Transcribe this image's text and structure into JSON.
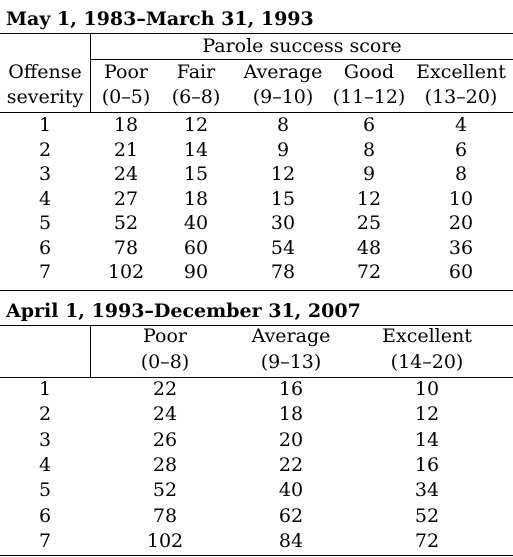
{
  "table1": {
    "title": "May 1, 1983–March 31, 1993",
    "group_label": "Parole success score",
    "stub_label": [
      "Offense",
      "severity"
    ],
    "columns": [
      {
        "label": "Poor",
        "range": "(0–5)"
      },
      {
        "label": "Fair",
        "range": "(6–8)"
      },
      {
        "label": "Average",
        "range": "(9–10)"
      },
      {
        "label": "Good",
        "range": "(11–12)"
      },
      {
        "label": "Excellent",
        "range": "(13–20)"
      }
    ],
    "rows": [
      {
        "severity": "1",
        "values": [
          "18",
          "12",
          "8",
          "6",
          "4"
        ]
      },
      {
        "severity": "2",
        "values": [
          "21",
          "14",
          "9",
          "8",
          "6"
        ]
      },
      {
        "severity": "3",
        "values": [
          "24",
          "15",
          "12",
          "9",
          "8"
        ]
      },
      {
        "severity": "4",
        "values": [
          "27",
          "18",
          "15",
          "12",
          "10"
        ]
      },
      {
        "severity": "5",
        "values": [
          "52",
          "40",
          "30",
          "25",
          "20"
        ]
      },
      {
        "severity": "6",
        "values": [
          "78",
          "60",
          "54",
          "48",
          "36"
        ]
      },
      {
        "severity": "7",
        "values": [
          "102",
          "90",
          "78",
          "72",
          "60"
        ]
      }
    ]
  },
  "table2": {
    "title": "April 1, 1993–December 31, 2007",
    "columns": [
      {
        "label": "Poor",
        "range": "(0–8)"
      },
      {
        "label": "Average",
        "range": "(9–13)"
      },
      {
        "label": "Excellent",
        "range": "(14–20)"
      }
    ],
    "rows": [
      {
        "severity": "1",
        "values": [
          "22",
          "16",
          "10"
        ]
      },
      {
        "severity": "2",
        "values": [
          "24",
          "18",
          "12"
        ]
      },
      {
        "severity": "3",
        "values": [
          "26",
          "20",
          "14"
        ]
      },
      {
        "severity": "4",
        "values": [
          "28",
          "22",
          "16"
        ]
      },
      {
        "severity": "5",
        "values": [
          "52",
          "40",
          "34"
        ]
      },
      {
        "severity": "6",
        "values": [
          "78",
          "62",
          "52"
        ]
      },
      {
        "severity": "7",
        "values": [
          "102",
          "84",
          "72"
        ]
      }
    ]
  }
}
